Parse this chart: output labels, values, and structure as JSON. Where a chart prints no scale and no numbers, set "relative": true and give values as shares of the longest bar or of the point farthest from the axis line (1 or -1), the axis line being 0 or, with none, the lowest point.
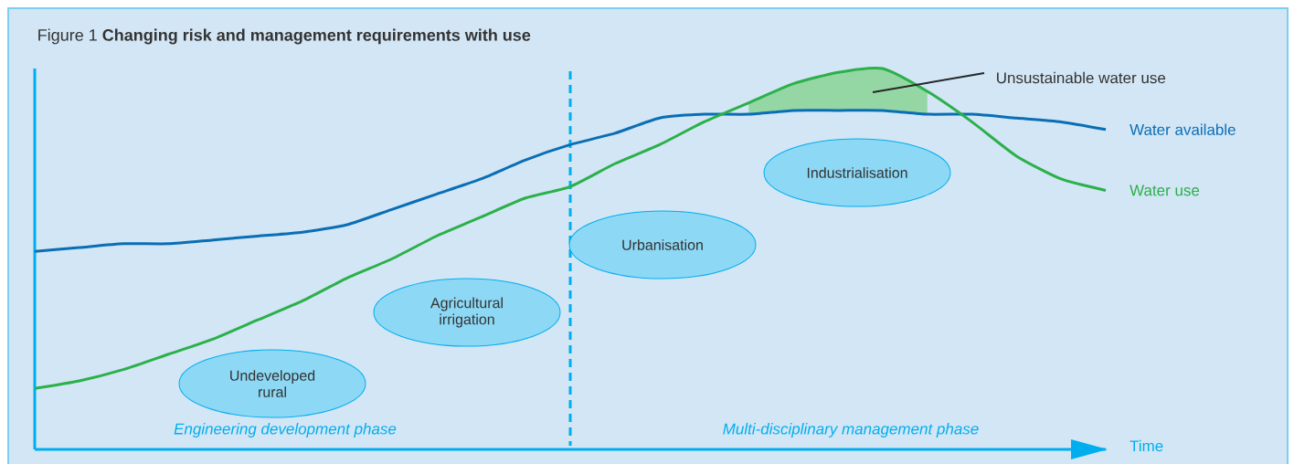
{
  "chart_data": {
    "type": "line",
    "relative": true,
    "title": "Figure 1 **Changing risk and management requirements with use**",
    "xlabel": "Time",
    "categories": [
      null,
      null,
      null,
      null,
      null,
      null,
      null,
      null,
      null,
      null,
      null,
      null,
      null,
      null,
      null,
      null,
      null,
      null,
      null,
      null,
      null,
      null,
      null,
      null,
      null
    ],
    "series": [
      {
        "name": "Water available",
        "color": "#0a6eb4",
        "values": [
          0.52,
          0.53,
          0.54,
          0.54,
          0.55,
          0.56,
          0.57,
          0.59,
          0.63,
          0.67,
          0.71,
          0.76,
          0.8,
          0.83,
          0.87,
          0.88,
          0.88,
          0.89,
          0.89,
          0.89,
          0.88,
          0.88,
          0.87,
          0.86,
          0.84
        ]
      },
      {
        "name": "Water use",
        "color": "#2bb04a",
        "values": [
          0.16,
          0.18,
          0.21,
          0.25,
          0.29,
          0.34,
          0.39,
          0.45,
          0.5,
          0.56,
          0.61,
          0.66,
          0.69,
          0.75,
          0.8,
          0.86,
          0.91,
          0.96,
          0.99,
          1.0,
          0.94,
          0.86,
          0.77,
          0.71,
          0.68
        ],
        "lower": [
          null,
          null,
          null,
          null,
          null,
          null,
          null,
          null,
          null,
          null,
          null,
          null,
          null,
          null,
          null,
          null,
          0.88,
          0.89,
          0.89,
          0.89,
          0.88,
          null,
          null,
          null,
          null
        ],
        "upper": [
          null,
          null,
          null,
          null,
          null,
          null,
          null,
          null,
          null,
          null,
          null,
          null,
          null,
          null,
          null,
          null,
          0.91,
          0.96,
          0.99,
          1.0,
          0.94,
          null,
          null,
          null,
          null
        ]
      }
    ],
    "annotations": [
      "Undeveloped rural",
      "Agricultural irrigation",
      "Urbanisation",
      "Industrialisation",
      "Engineering development phase",
      "Multi-disciplinary management phase",
      "Unsustainable water use"
    ]
  }
}
